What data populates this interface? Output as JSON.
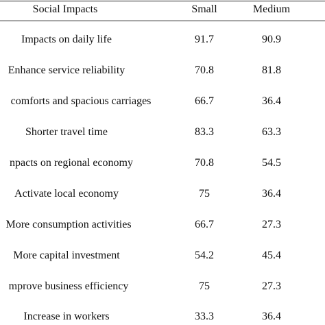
{
  "table": {
    "headers": [
      "Social Impacts",
      "Small",
      "Medium"
    ],
    "rows": [
      {
        "label": "Impacts on daily life",
        "small": "91.7",
        "medium": "90.9"
      },
      {
        "label": "Enhance service reliability",
        "small": "70.8",
        "medium": "81.8"
      },
      {
        "label": "comforts and spacious carriages",
        "small": "66.7",
        "medium": "36.4"
      },
      {
        "label": "Shorter travel time",
        "small": "83.3",
        "medium": "63.3"
      },
      {
        "label": "npacts on regional economy",
        "small": "70.8",
        "medium": "54.5"
      },
      {
        "label": "Activate local economy",
        "small": "75",
        "medium": "36.4"
      },
      {
        "label": "More consumption activities",
        "small": "66.7",
        "medium": "27.3"
      },
      {
        "label": "More capital investment",
        "small": "54.2",
        "medium": "45.4"
      },
      {
        "label": "mprove business efficiency",
        "small": "75",
        "medium": "27.3"
      },
      {
        "label": "Increase in workers",
        "small": "33.3",
        "medium": "36.4"
      }
    ]
  }
}
